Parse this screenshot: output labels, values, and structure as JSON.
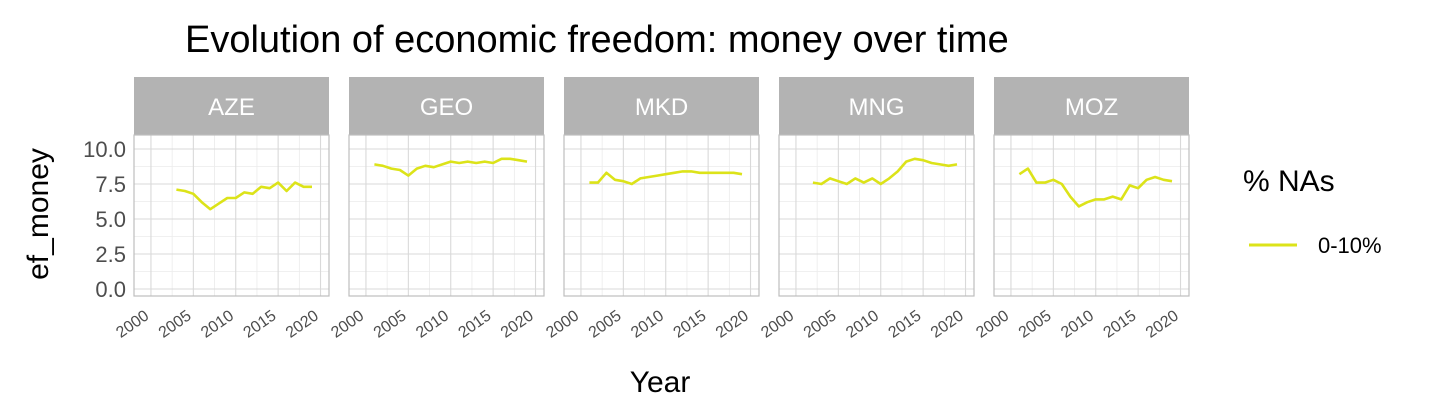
{
  "chart_data": {
    "type": "line",
    "title": "Evolution of economic freedom: money over time",
    "xlabel": "Year",
    "ylabel": "ef_money",
    "xlim": [
      1998,
      2021
    ],
    "ylim": [
      -0.5,
      11
    ],
    "x_ticks": [
      2000,
      2005,
      2010,
      2015,
      2020
    ],
    "x_tick_labels": [
      "2000",
      "2005",
      "2010",
      "2015",
      "2020"
    ],
    "y_ticks": [
      0,
      2.5,
      5,
      7.5,
      10
    ],
    "y_tick_labels": [
      "0.0",
      "2.5",
      "5.0",
      "7.5",
      "10.0"
    ],
    "grid": true,
    "legend": {
      "title": "% NAs",
      "position": "right",
      "entries": [
        {
          "label": "0-10%",
          "color": "#dce319"
        }
      ]
    },
    "series_color": "#dce319",
    "facets": [
      {
        "label": "AZE",
        "x": [
          2003,
          2004,
          2005,
          2006,
          2007,
          2008,
          2009,
          2010,
          2011,
          2012,
          2013,
          2014,
          2015,
          2016,
          2017,
          2018,
          2019
        ],
        "y": [
          7.1,
          7.0,
          6.8,
          6.2,
          5.7,
          6.1,
          6.5,
          6.5,
          6.9,
          6.8,
          7.3,
          7.2,
          7.6,
          7.0,
          7.6,
          7.3,
          7.3
        ]
      },
      {
        "label": "GEO",
        "x": [
          2001,
          2002,
          2003,
          2004,
          2005,
          2006,
          2007,
          2008,
          2009,
          2010,
          2011,
          2012,
          2013,
          2014,
          2015,
          2016,
          2017,
          2018,
          2019
        ],
        "y": [
          8.9,
          8.8,
          8.6,
          8.5,
          8.1,
          8.6,
          8.8,
          8.7,
          8.9,
          9.1,
          9.0,
          9.1,
          9.0,
          9.1,
          9.0,
          9.3,
          9.3,
          9.2,
          9.1
        ]
      },
      {
        "label": "MKD",
        "x": [
          2001,
          2002,
          2003,
          2004,
          2005,
          2006,
          2007,
          2008,
          2009,
          2010,
          2011,
          2012,
          2013,
          2014,
          2015,
          2016,
          2017,
          2018,
          2019
        ],
        "y": [
          7.6,
          7.6,
          8.3,
          7.8,
          7.7,
          7.5,
          7.9,
          8.0,
          8.1,
          8.2,
          8.3,
          8.4,
          8.4,
          8.3,
          8.3,
          8.3,
          8.3,
          8.3,
          8.2
        ]
      },
      {
        "label": "MNG",
        "x": [
          2002,
          2003,
          2004,
          2005,
          2006,
          2007,
          2008,
          2009,
          2010,
          2011,
          2012,
          2013,
          2014,
          2015,
          2016,
          2017,
          2018,
          2019
        ],
        "y": [
          7.6,
          7.5,
          7.9,
          7.7,
          7.5,
          7.9,
          7.6,
          7.9,
          7.5,
          7.9,
          8.4,
          9.1,
          9.3,
          9.2,
          9.0,
          8.9,
          8.8,
          8.9
        ]
      },
      {
        "label": "MOZ",
        "x": [
          2001,
          2002,
          2003,
          2004,
          2005,
          2006,
          2007,
          2008,
          2009,
          2010,
          2011,
          2012,
          2013,
          2014,
          2015,
          2016,
          2017,
          2018,
          2019
        ],
        "y": [
          8.2,
          8.6,
          7.6,
          7.6,
          7.8,
          7.5,
          6.6,
          5.9,
          6.2,
          6.4,
          6.4,
          6.6,
          6.4,
          7.4,
          7.2,
          7.8,
          8.0,
          7.8,
          7.7
        ]
      }
    ]
  }
}
